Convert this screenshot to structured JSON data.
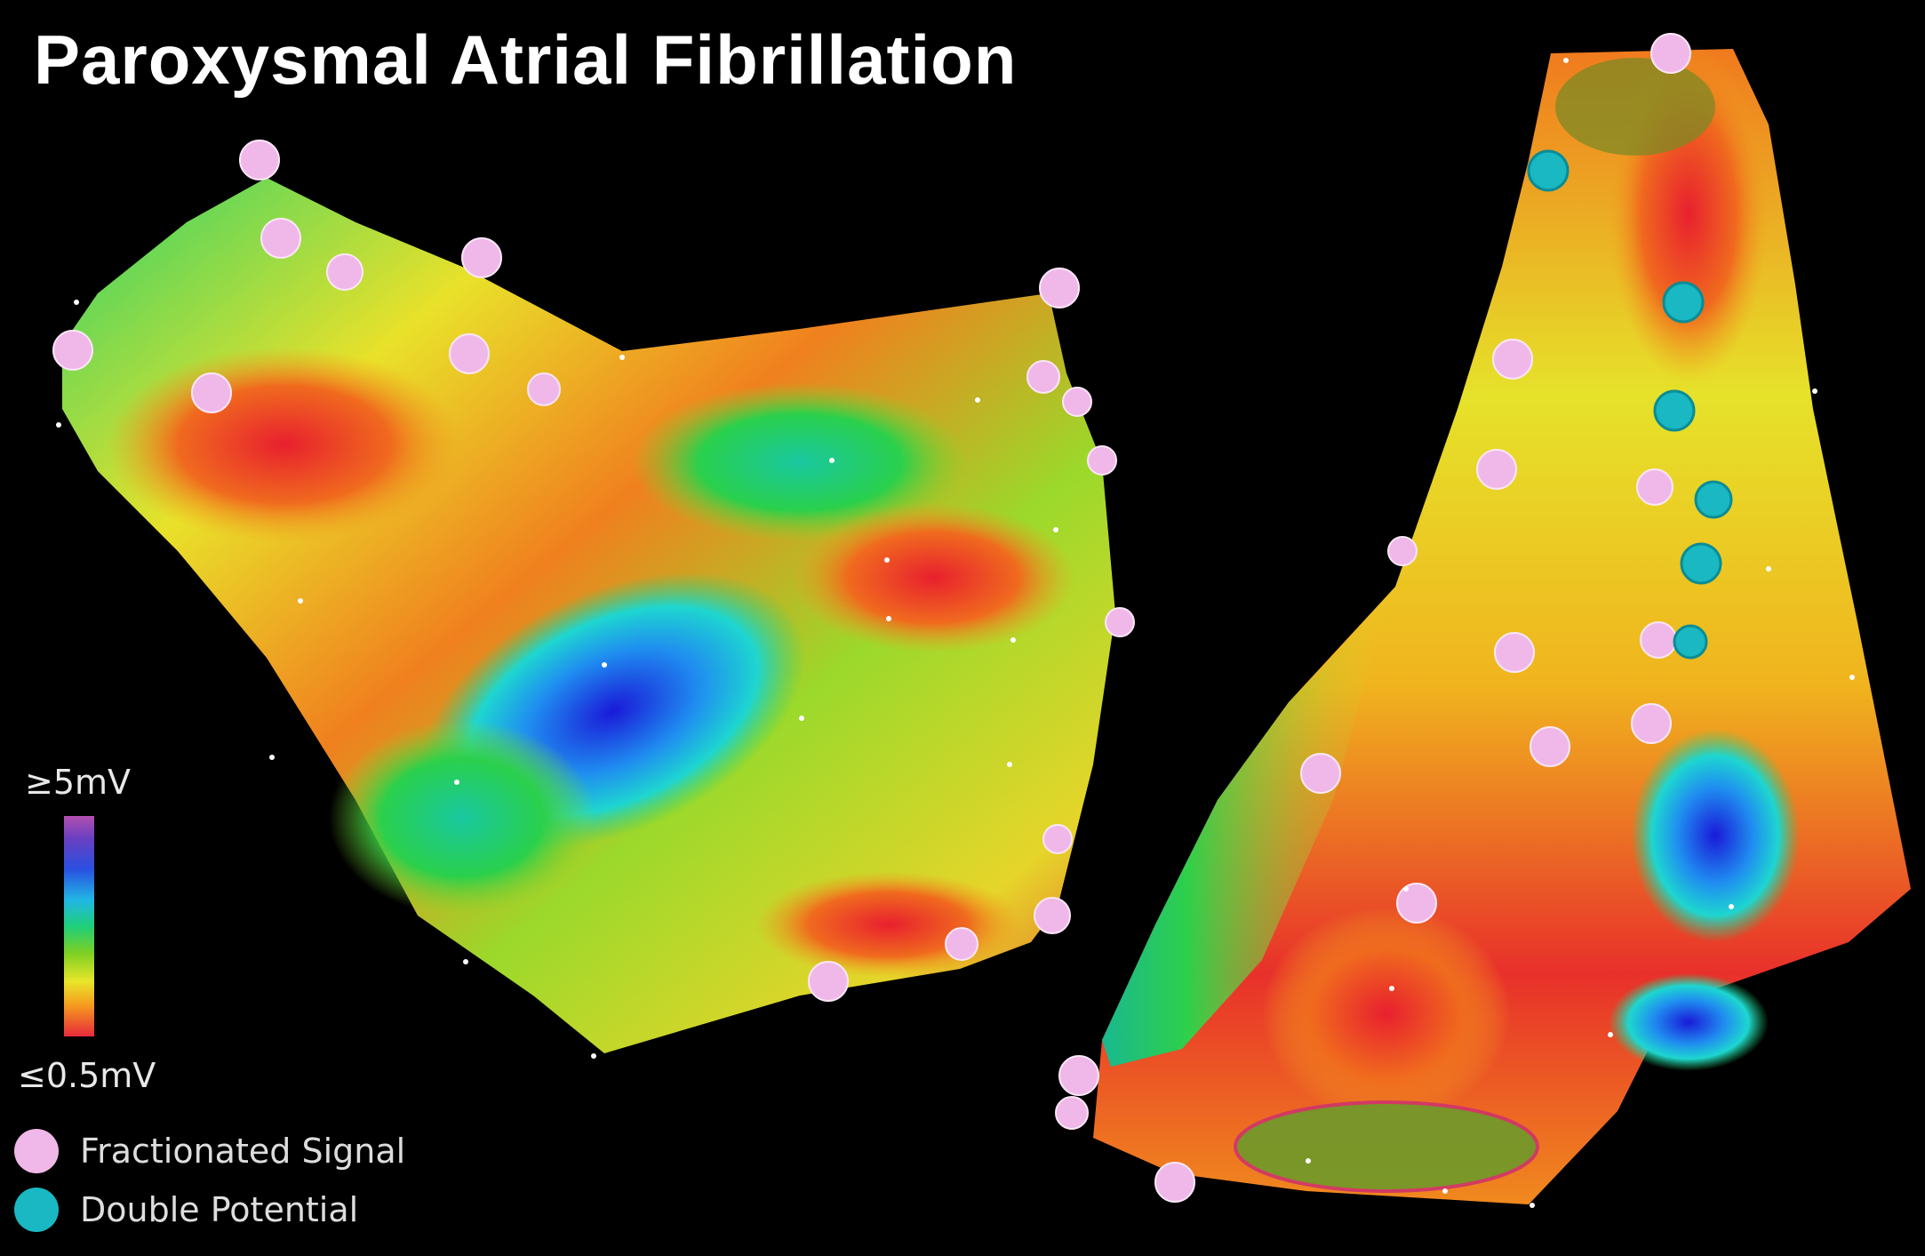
{
  "figure": {
    "title": "Paroxysmal Atrial Fibrillation",
    "scale_max_label": "≥5mV",
    "scale_min_label": "≤0.5mV",
    "legend": [
      {
        "label": "Fractionated Signal",
        "color": "#f0b8e8"
      },
      {
        "label": "Double Potential",
        "color": "#19b8c2"
      }
    ],
    "colorbar_colors": [
      "#b24fb0",
      "#2a4fe0",
      "#21b6e6",
      "#1ecf7a",
      "#e8e62a",
      "#f59a1e",
      "#e8283c"
    ],
    "background_color": "#000000"
  }
}
